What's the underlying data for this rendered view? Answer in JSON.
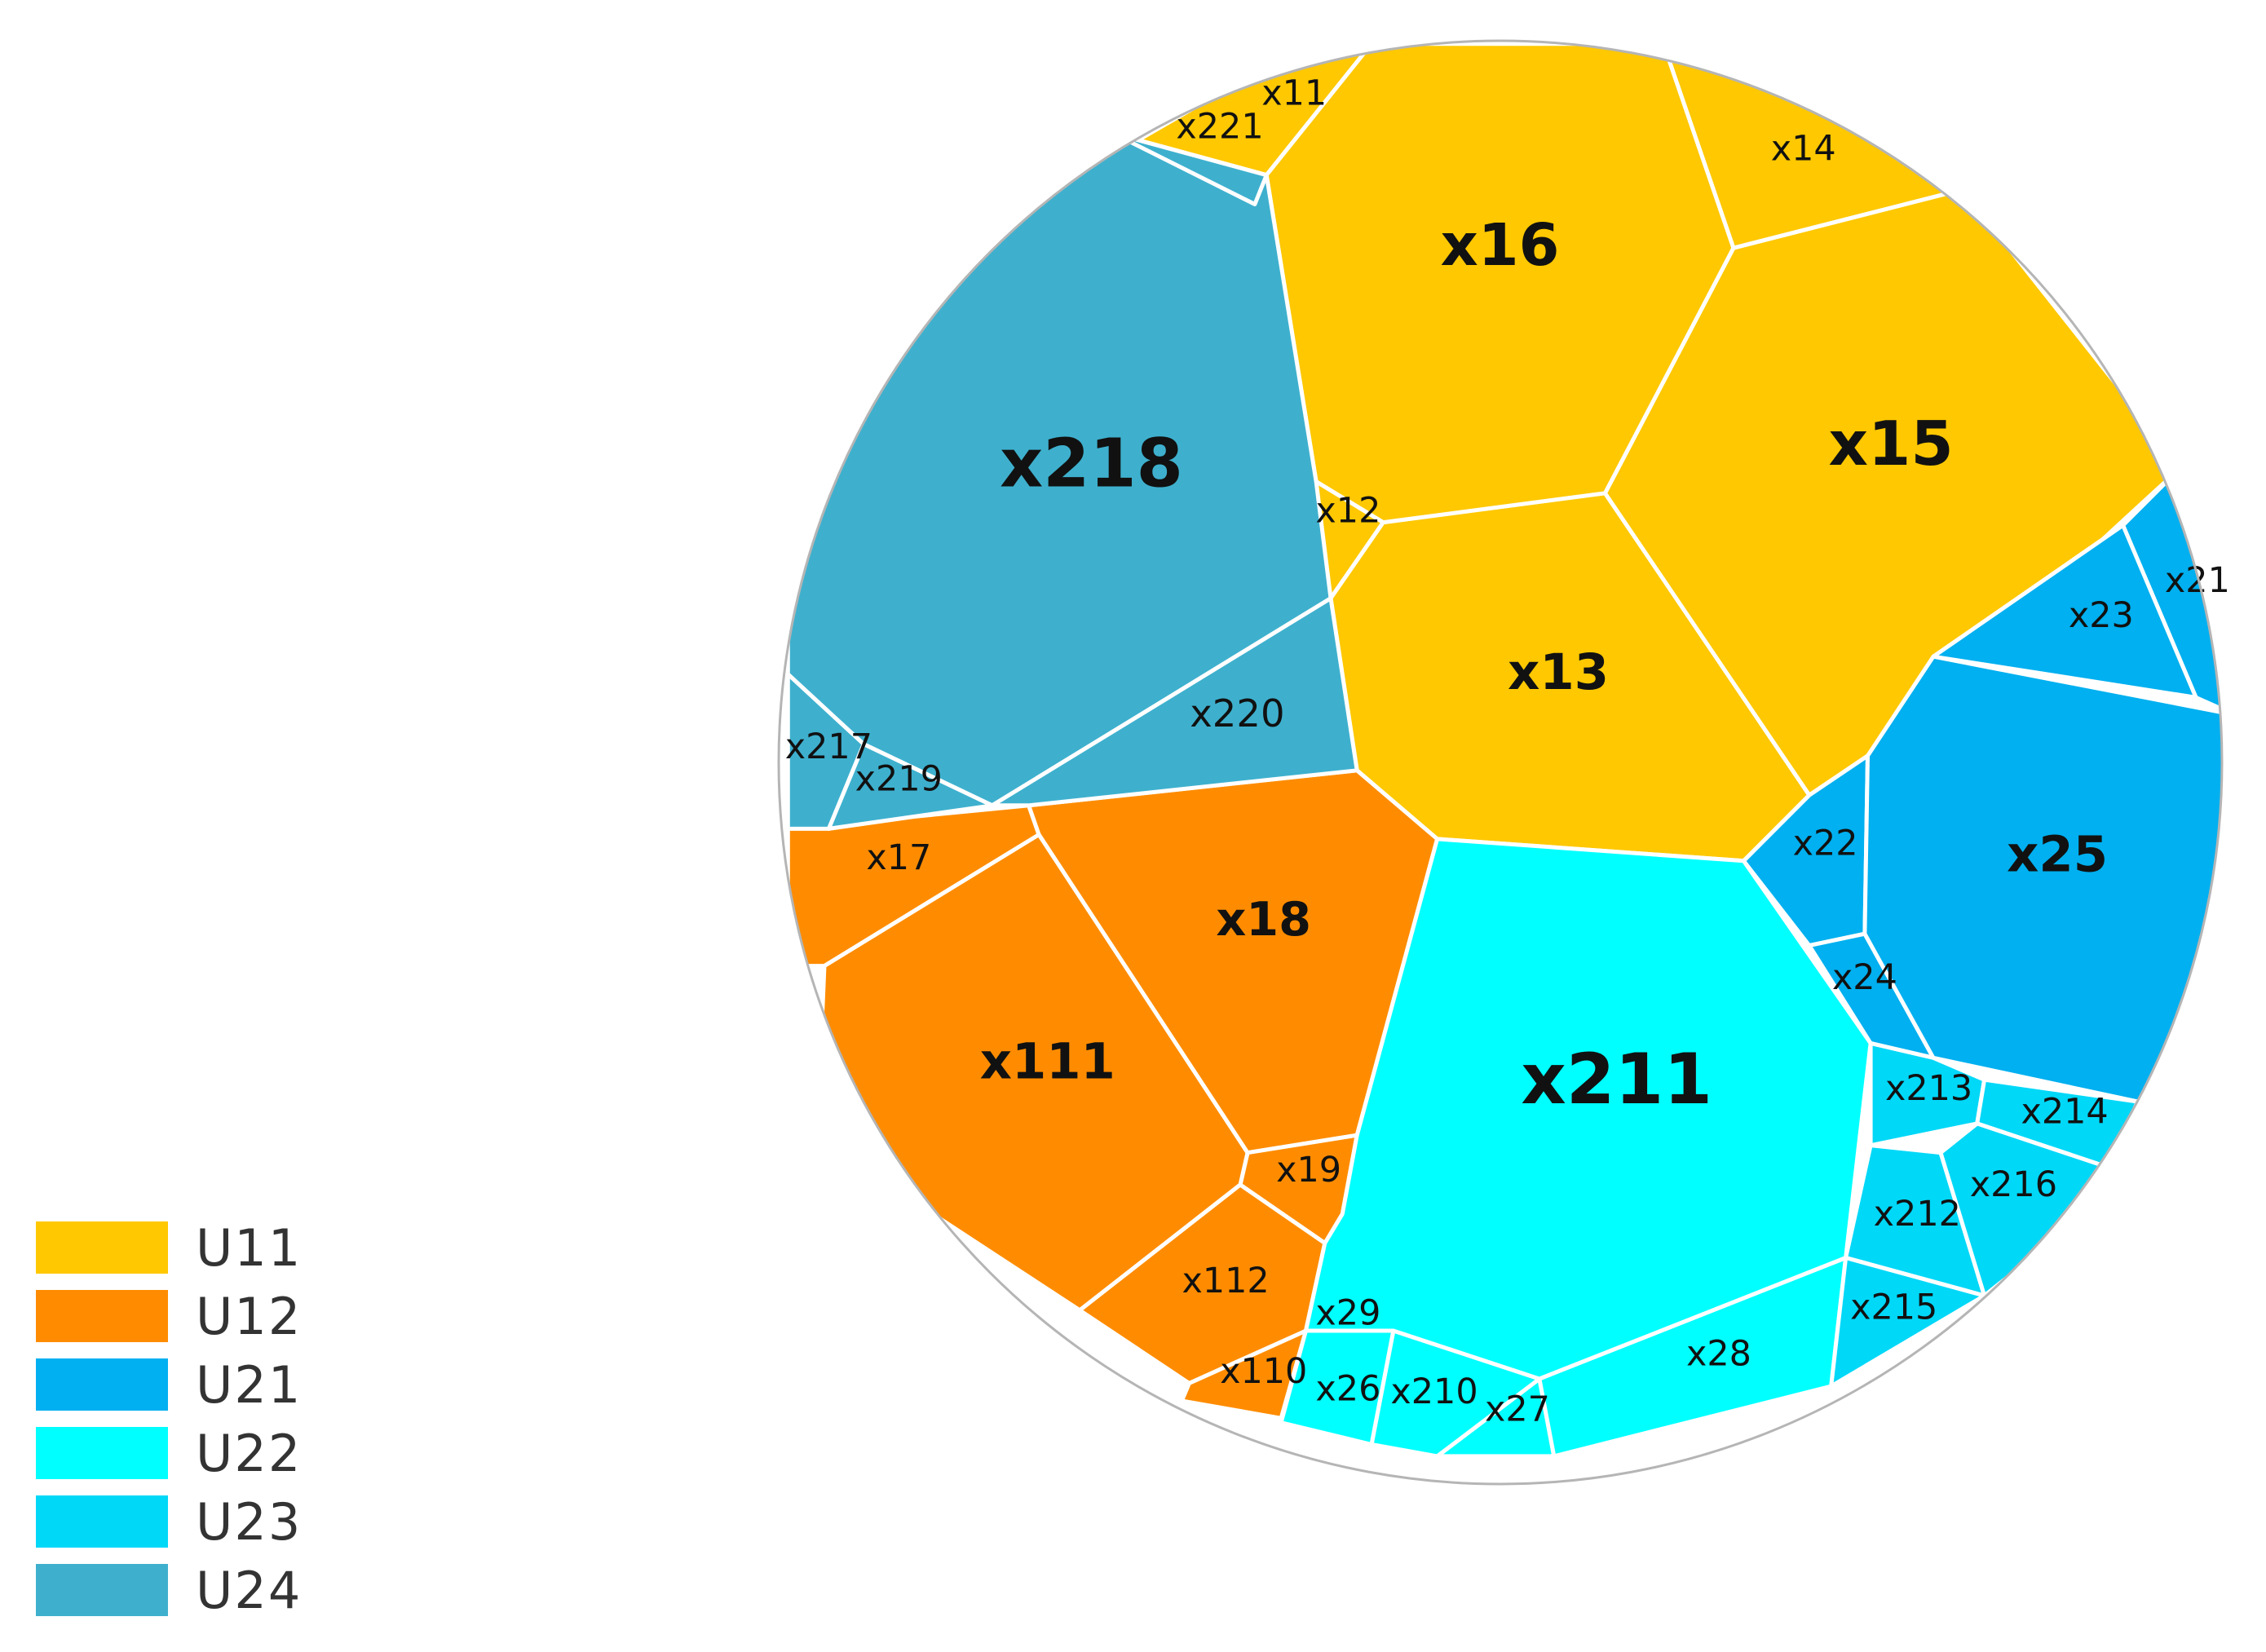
{
  "chart_data": {
    "type": "voronoi-treemap",
    "groups": [
      {
        "name": "U11",
        "color": "#FFC800",
        "cells": [
          "x11",
          "x12",
          "x13",
          "x14",
          "x15",
          "x16"
        ]
      },
      {
        "name": "U12",
        "color": "#FF8C00",
        "cells": [
          "x17",
          "x18",
          "x19",
          "x110",
          "x111",
          "x112"
        ]
      },
      {
        "name": "U21",
        "color": "#00B0F0",
        "cells": [
          "x21",
          "x22",
          "x23",
          "x24",
          "x25"
        ]
      },
      {
        "name": "U22",
        "color": "#00FFFF",
        "cells": [
          "x26",
          "x27",
          "x28",
          "x29",
          "x210",
          "x211"
        ]
      },
      {
        "name": "U23",
        "color": "#00D8F8",
        "cells": [
          "x212",
          "x213",
          "x214",
          "x215",
          "x216"
        ]
      },
      {
        "name": "U24",
        "color": "#3EB0CE",
        "cells": [
          "x217",
          "x218",
          "x219",
          "x220",
          "x221"
        ]
      }
    ],
    "legend_position": "bottom-left"
  }
}
